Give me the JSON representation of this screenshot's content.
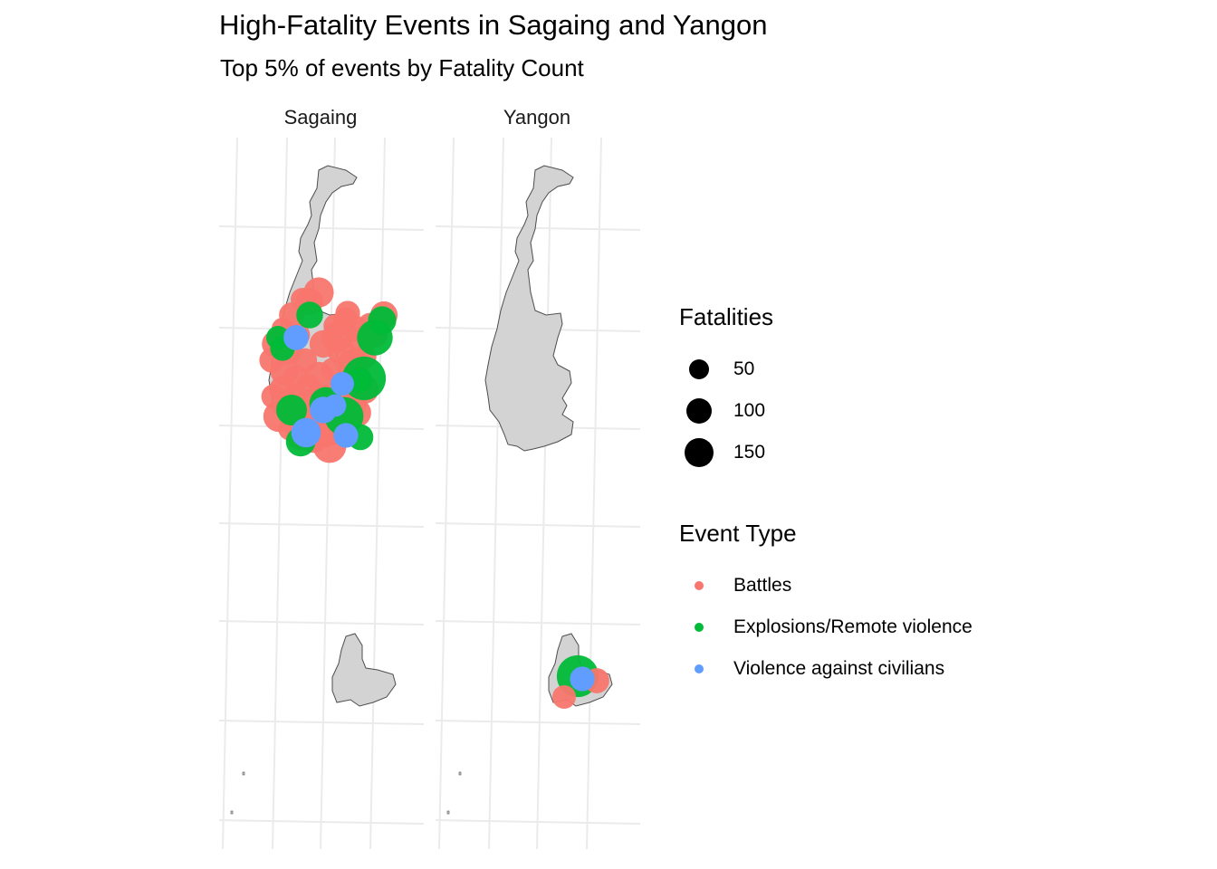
{
  "title": "High-Fatality Events in Sagaing and Yangon",
  "subtitle": "Top 5% of events by Fatality Count",
  "chart_data": {
    "type": "scatter",
    "map_type": "faceted point map",
    "facets": [
      "Sagaing",
      "Yangon"
    ],
    "legend_size": {
      "title": "Fatalities",
      "breaks": [
        {
          "label": "50",
          "value": 50
        },
        {
          "label": "100",
          "value": 100
        },
        {
          "label": "150",
          "value": 150
        }
      ]
    },
    "legend_color": {
      "title": "Event Type",
      "items": [
        {
          "label": "Battles",
          "color": "#F8766D"
        },
        {
          "label": "Explosions/Remote violence",
          "color": "#00BA38"
        },
        {
          "label": "Violence against civilians",
          "color": "#619CFF"
        }
      ]
    },
    "colors": {
      "region_fill": "#D3D3D3",
      "region_stroke": "#4d4d4d",
      "grid": "#ebebeb"
    },
    "events": {
      "Sagaing": [
        {
          "type": 0,
          "f": 35
        },
        {
          "type": 0,
          "f": 40
        },
        {
          "type": 0,
          "f": 30
        },
        {
          "type": 0,
          "f": 45
        },
        {
          "type": 0,
          "f": 38
        },
        {
          "type": 0,
          "f": 50
        },
        {
          "type": 0,
          "f": 42
        },
        {
          "type": 0,
          "f": 36
        },
        {
          "type": 0,
          "f": 55
        },
        {
          "type": 0,
          "f": 33
        },
        {
          "type": 0,
          "f": 48
        },
        {
          "type": 0,
          "f": 60
        },
        {
          "type": 0,
          "f": 37
        },
        {
          "type": 0,
          "f": 44
        },
        {
          "type": 0,
          "f": 52
        },
        {
          "type": 0,
          "f": 31
        },
        {
          "type": 0,
          "f": 41
        },
        {
          "type": 0,
          "f": 47
        },
        {
          "type": 0,
          "f": 39
        },
        {
          "type": 0,
          "f": 65
        },
        {
          "type": 0,
          "f": 34
        },
        {
          "type": 0,
          "f": 43
        },
        {
          "type": 0,
          "f": 58
        },
        {
          "type": 0,
          "f": 32
        },
        {
          "type": 0,
          "f": 46
        },
        {
          "type": 0,
          "f": 38
        },
        {
          "type": 0,
          "f": 50
        },
        {
          "type": 0,
          "f": 36
        },
        {
          "type": 0,
          "f": 40
        },
        {
          "type": 0,
          "f": 54
        },
        {
          "type": 0,
          "f": 35
        },
        {
          "type": 0,
          "f": 42
        },
        {
          "type": 0,
          "f": 49
        },
        {
          "type": 0,
          "f": 33
        },
        {
          "type": 0,
          "f": 61
        },
        {
          "type": 0,
          "f": 37
        },
        {
          "type": 0,
          "f": 44
        },
        {
          "type": 0,
          "f": 30
        },
        {
          "type": 0,
          "f": 52
        },
        {
          "type": 0,
          "f": 39
        },
        {
          "type": 0,
          "f": 70
        },
        {
          "type": 0,
          "f": 41
        },
        {
          "type": 0,
          "f": 36
        },
        {
          "type": 0,
          "f": 48
        },
        {
          "type": 0,
          "f": 34
        },
        {
          "type": 0,
          "f": 45
        },
        {
          "type": 0,
          "f": 57
        },
        {
          "type": 0,
          "f": 38
        },
        {
          "type": 0,
          "f": 43
        },
        {
          "type": 0,
          "f": 32
        },
        {
          "type": 1,
          "f": 45
        },
        {
          "type": 1,
          "f": 60
        },
        {
          "type": 1,
          "f": 80
        },
        {
          "type": 1,
          "f": 120
        },
        {
          "type": 1,
          "f": 50
        },
        {
          "type": 1,
          "f": 40
        },
        {
          "type": 1,
          "f": 95
        },
        {
          "type": 1,
          "f": 35
        },
        {
          "type": 1,
          "f": 70
        },
        {
          "type": 1,
          "f": 55
        },
        {
          "type": 1,
          "f": 42
        },
        {
          "type": 1,
          "f": 38
        },
        {
          "type": 2,
          "f": 40
        },
        {
          "type": 2,
          "f": 35
        },
        {
          "type": 2,
          "f": 55
        },
        {
          "type": 2,
          "f": 38
        },
        {
          "type": 2,
          "f": 45
        },
        {
          "type": 2,
          "f": 32
        }
      ],
      "Yangon": [
        {
          "type": 1,
          "f": 110
        },
        {
          "type": 0,
          "f": 40
        },
        {
          "type": 0,
          "f": 35
        },
        {
          "type": 2,
          "f": 38
        }
      ]
    }
  }
}
